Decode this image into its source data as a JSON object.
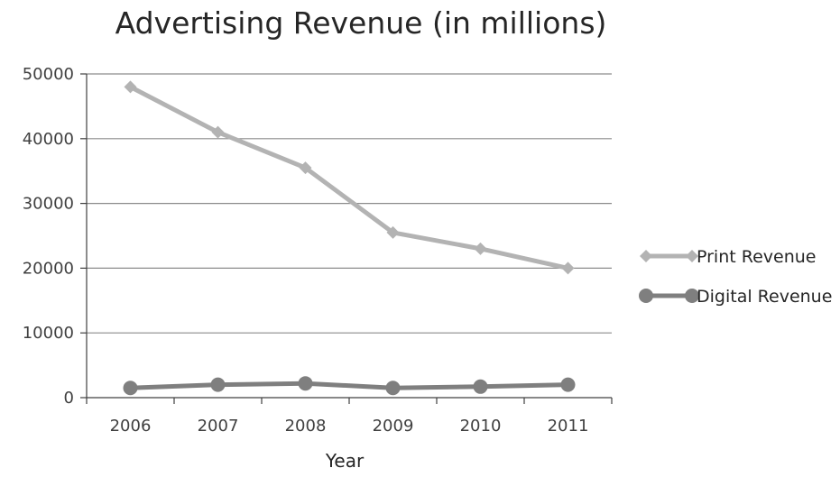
{
  "chart_data": {
    "type": "line",
    "title": "Advertising Revenue (in millions)",
    "xlabel": "Year",
    "ylabel": "",
    "categories": [
      "2006",
      "2007",
      "2008",
      "2009",
      "2010",
      "2011"
    ],
    "ylim": [
      0,
      50000
    ],
    "yticks": [
      0,
      10000,
      20000,
      30000,
      40000,
      50000
    ],
    "grid": true,
    "legend_position": "right",
    "series": [
      {
        "name": "Print Revenue",
        "values": [
          48000,
          41000,
          35500,
          25500,
          23000,
          20000
        ],
        "color": "#b3b3b3",
        "marker": "diamond"
      },
      {
        "name": "Digital Revenue",
        "values": [
          1500,
          2000,
          2200,
          1500,
          1700,
          2000
        ],
        "color": "#7f7f7f",
        "marker": "circle"
      }
    ]
  }
}
